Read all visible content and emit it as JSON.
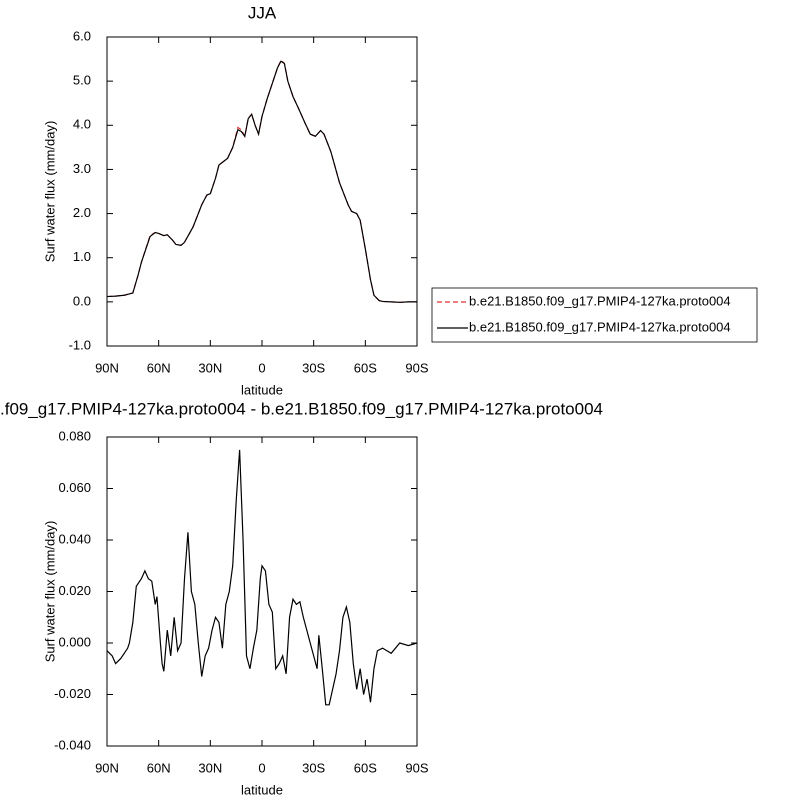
{
  "chart_data": [
    {
      "type": "line",
      "title": "JJA",
      "x_label": "latitude",
      "y_label": "Surf water flux (mm/day)",
      "x": [
        90,
        85,
        80,
        75,
        72,
        70,
        65,
        62,
        60,
        57,
        55,
        52,
        50,
        47,
        45,
        40,
        35,
        32,
        30,
        27,
        25,
        20,
        17,
        14,
        12,
        10,
        8,
        6,
        4,
        2,
        0,
        -3,
        -6,
        -9,
        -11,
        -13,
        -15,
        -18,
        -21,
        -25,
        -28,
        -31,
        -34,
        -36,
        -40,
        -45,
        -50,
        -52,
        -55,
        -57,
        -60,
        -63,
        -65,
        -68,
        -70,
        -75,
        -80,
        -85,
        -90
      ],
      "series": [
        {
          "name": "b.e21.B1850.f09_g17.PMIP4-127ka.proto004",
          "color": "#e03030",
          "style": "dashed",
          "values": [
            0.12,
            0.13,
            0.15,
            0.2,
            0.6,
            0.9,
            1.5,
            1.57,
            1.55,
            1.5,
            1.52,
            1.4,
            1.3,
            1.28,
            1.35,
            1.7,
            2.2,
            2.42,
            2.45,
            2.8,
            3.1,
            3.25,
            3.5,
            3.95,
            3.9,
            3.75,
            4.15,
            4.25,
            4.0,
            3.8,
            4.2,
            4.6,
            4.95,
            5.3,
            5.47,
            5.4,
            5.0,
            4.65,
            4.4,
            4.05,
            3.8,
            3.75,
            3.88,
            3.8,
            3.4,
            2.7,
            2.2,
            2.05,
            2.0,
            1.85,
            1.2,
            0.5,
            0.15,
            0.03,
            0.01,
            0.0,
            -0.01,
            0.0,
            0.0
          ]
        },
        {
          "name": "b.e21.B1850.f09_g17.PMIP4-127ka.proto004",
          "color": "#000000",
          "style": "solid",
          "values": [
            0.12,
            0.13,
            0.15,
            0.2,
            0.6,
            0.9,
            1.48,
            1.57,
            1.55,
            1.5,
            1.52,
            1.4,
            1.3,
            1.28,
            1.35,
            1.7,
            2.2,
            2.42,
            2.45,
            2.8,
            3.1,
            3.25,
            3.5,
            3.9,
            3.86,
            3.75,
            4.15,
            4.25,
            4.0,
            3.8,
            4.2,
            4.6,
            4.95,
            5.3,
            5.45,
            5.4,
            5.0,
            4.65,
            4.4,
            4.05,
            3.8,
            3.75,
            3.88,
            3.8,
            3.4,
            2.7,
            2.2,
            2.05,
            2.0,
            1.85,
            1.2,
            0.5,
            0.15,
            0.03,
            0.01,
            0.0,
            -0.01,
            0.0,
            0.0
          ]
        }
      ],
      "xlim": [
        90,
        -90
      ],
      "xticks": [
        {
          "value": 90,
          "label": "90N"
        },
        {
          "value": 60,
          "label": "60N"
        },
        {
          "value": 30,
          "label": "30N"
        },
        0,
        {
          "value": -30,
          "label": "30S"
        },
        {
          "value": -60,
          "label": "60S"
        },
        {
          "value": -90,
          "label": "90S"
        }
      ],
      "ylim": [
        -1,
        6
      ],
      "yticks": [
        {
          "value": -1,
          "label": "-1.0"
        },
        {
          "value": 0,
          "label": "0.0"
        },
        {
          "value": 1,
          "label": "1.0"
        },
        {
          "value": 2,
          "label": "2.0"
        },
        {
          "value": 3,
          "label": "3.0"
        },
        {
          "value": 4,
          "label": "4.0"
        },
        {
          "value": 5,
          "label": "5.0"
        },
        {
          "value": 6,
          "label": "6.0"
        }
      ],
      "legend": "right"
    },
    {
      "type": "line",
      "title": ".f09_g17.PMIP4-127ka.proto004 - b.e21.B1850.f09_g17.PMIP4-127ka.proto004",
      "x_label": "latitude",
      "y_label": "Surf water flux (mm/day)",
      "x": [
        90,
        87,
        85,
        82,
        80,
        78,
        77,
        75,
        73,
        70,
        68,
        66,
        64,
        62,
        61,
        59,
        58,
        57,
        55,
        53,
        51,
        49,
        47,
        45,
        43,
        41,
        39,
        37,
        35,
        33,
        31,
        29,
        27,
        25,
        23,
        21,
        19,
        17,
        15,
        13,
        11,
        9,
        7,
        5,
        3,
        1,
        0,
        -2,
        -4,
        -6,
        -8,
        -10,
        -12,
        -14,
        -16,
        -18,
        -20,
        -22,
        -24,
        -26,
        -28,
        -30,
        -32,
        -33,
        -35,
        -37,
        -39,
        -41,
        -43,
        -45,
        -47,
        -49,
        -51,
        -53,
        -55,
        -57,
        -59,
        -61,
        -63,
        -65,
        -67,
        -70,
        -75,
        -80,
        -85,
        -90
      ],
      "values": [
        -0.003,
        -0.005,
        -0.008,
        -0.006,
        -0.004,
        -0.002,
        0.0,
        0.008,
        0.022,
        0.025,
        0.028,
        0.025,
        0.024,
        0.015,
        0.018,
        0.0,
        -0.008,
        -0.011,
        0.005,
        -0.005,
        0.01,
        -0.003,
        0.0,
        0.025,
        0.043,
        0.02,
        0.015,
        0.0,
        -0.013,
        -0.005,
        -0.002,
        0.005,
        0.01,
        0.008,
        -0.002,
        0.015,
        0.02,
        0.03,
        0.055,
        0.075,
        0.04,
        -0.005,
        -0.01,
        -0.002,
        0.005,
        0.025,
        0.03,
        0.028,
        0.015,
        0.012,
        -0.01,
        -0.008,
        -0.005,
        -0.012,
        0.01,
        0.017,
        0.015,
        0.016,
        0.01,
        0.005,
        0.0,
        -0.005,
        -0.01,
        0.003,
        -0.01,
        -0.024,
        -0.024,
        -0.018,
        -0.012,
        -0.003,
        0.01,
        0.014,
        0.008,
        -0.008,
        -0.018,
        -0.01,
        -0.02,
        -0.014,
        -0.023,
        -0.01,
        -0.003,
        -0.002,
        -0.004,
        0.0,
        -0.001,
        0.0
      ],
      "color": "#000000",
      "xlim": [
        90,
        -90
      ],
      "xticks": [
        {
          "value": 90,
          "label": "90N"
        },
        {
          "value": 60,
          "label": "60N"
        },
        {
          "value": 30,
          "label": "30N"
        },
        0,
        {
          "value": -30,
          "label": "30S"
        },
        {
          "value": -60,
          "label": "60S"
        },
        {
          "value": -90,
          "label": "90S"
        }
      ],
      "ylim": [
        -0.04,
        0.08
      ],
      "yticks": [
        {
          "value": -0.04,
          "label": "-0.040"
        },
        {
          "value": -0.02,
          "label": "-0.020"
        },
        {
          "value": 0,
          "label": "0.000"
        },
        {
          "value": 0.02,
          "label": "0.020"
        },
        {
          "value": 0.04,
          "label": "0.040"
        },
        {
          "value": 0.06,
          "label": "0.060"
        },
        {
          "value": 0.08,
          "label": "0.080"
        }
      ]
    }
  ]
}
